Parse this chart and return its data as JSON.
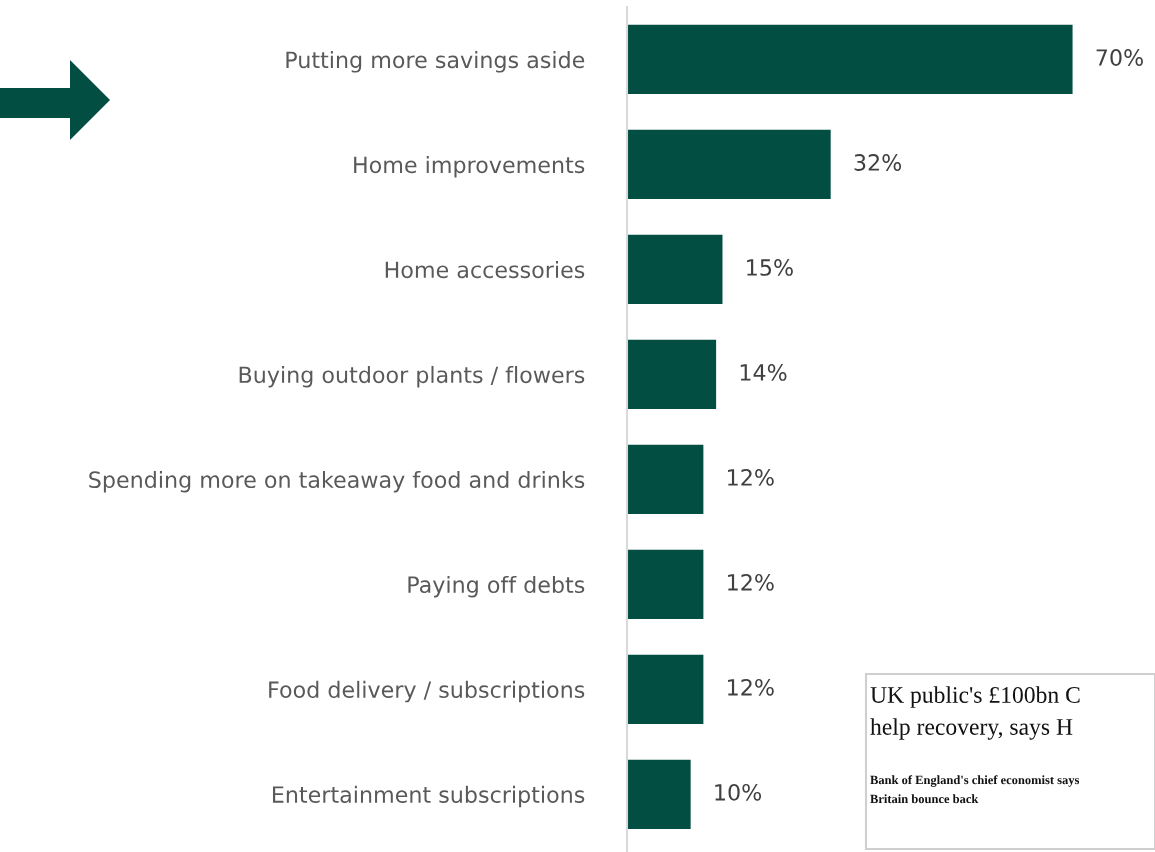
{
  "chart_data": {
    "type": "bar",
    "orientation": "horizontal",
    "categories": [
      "Putting more savings aside",
      "Home improvements",
      "Home accessories",
      "Buying outdoor plants / flowers",
      "Spending more on takeaway food and drinks",
      "Paying off debts",
      "Food delivery / subscriptions",
      "Entertainment subscriptions"
    ],
    "values": [
      70,
      32,
      15,
      14,
      12,
      12,
      12,
      10
    ],
    "value_labels": [
      "70%",
      "32%",
      "15%",
      "14%",
      "12%",
      "12%",
      "12%",
      "10%"
    ],
    "color": "#034e42",
    "annotations": [
      "UK public's £100bn C",
      "help recovery, says H",
      "Bank of England's chief economist says",
      "Britain bounce back"
    ]
  }
}
